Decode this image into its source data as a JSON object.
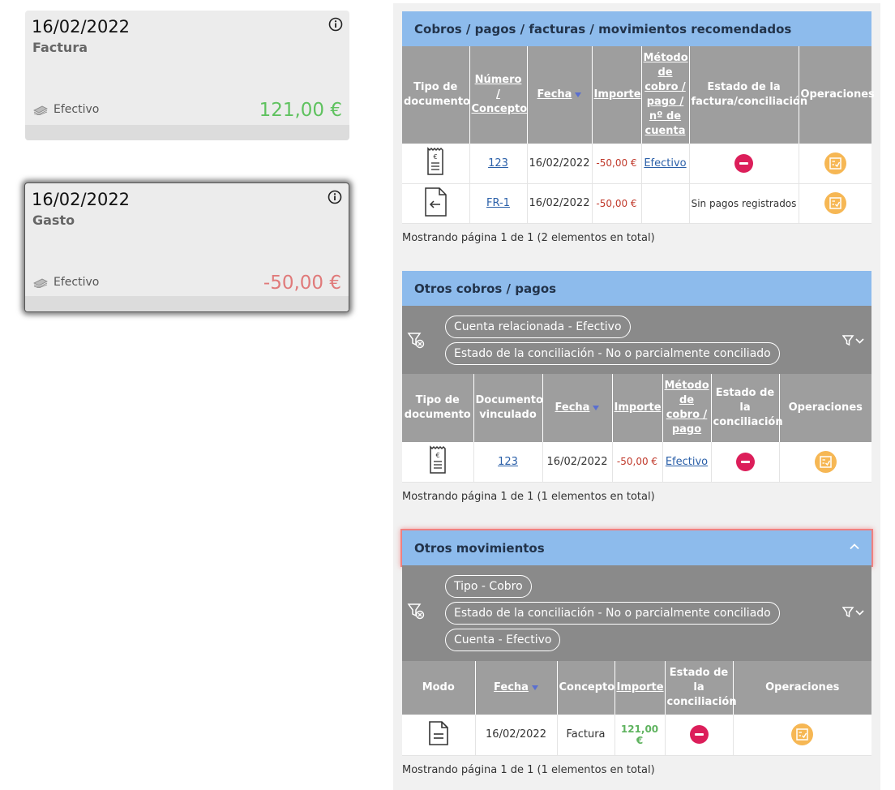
{
  "cards": [
    {
      "date": "16/02/2022",
      "type": "Factura",
      "method": "Efectivo",
      "amount": "121,00 €",
      "sign": "pos"
    },
    {
      "date": "16/02/2022",
      "type": "Gasto",
      "method": "Efectivo",
      "amount": "-50,00 €",
      "sign": "neg"
    }
  ],
  "recommended": {
    "title": "Cobros / pagos / facturas / movimientos recomendados",
    "headers": {
      "doc_type": "Tipo de documento",
      "number": "Número / Concepto",
      "date": "Fecha",
      "amount": "Importe",
      "method": "Método de cobro / pago / nº de cuenta",
      "status": "Estado de la factura/conciliación",
      "ops": "Operaciones"
    },
    "rows": [
      {
        "icon": "receipt-icon",
        "number": "123",
        "date": "16/02/2022",
        "amount": "-50,00 €",
        "method": "Efectivo",
        "status": ""
      },
      {
        "icon": "document-in-icon",
        "number": "FR-1",
        "date": "16/02/2022",
        "amount": "-50,00 €",
        "method": "",
        "status": "Sin pagos registrados"
      }
    ],
    "footer": "Mostrando página 1 de 1 (2 elementos en total)"
  },
  "other_payments": {
    "title": "Otros cobros / pagos",
    "filters": [
      "Cuenta relacionada - Efectivo",
      "Estado de la conciliación - No o parcialmente conciliado"
    ],
    "headers": {
      "doc_type": "Tipo de documento",
      "linked": "Documento vinculado",
      "date": "Fecha",
      "amount": "Importe",
      "method": "Método de cobro / pago",
      "status": "Estado de la conciliación",
      "ops": "Operaciones"
    },
    "rows": [
      {
        "icon": "receipt-icon",
        "linked": "123",
        "date": "16/02/2022",
        "amount": "-50,00 €",
        "method": "Efectivo"
      }
    ],
    "footer": "Mostrando página 1 de 1 (1 elementos en total)"
  },
  "other_movements": {
    "title": "Otros movimientos",
    "filters": [
      "Tipo - Cobro",
      "Estado de la conciliación - No o parcialmente conciliado",
      "Cuenta - Efectivo"
    ],
    "headers": {
      "mode": "Modo",
      "date": "Fecha",
      "concept": "Concepto",
      "amount": "Importe",
      "status": "Estado de la conciliación",
      "ops": "Operaciones"
    },
    "rows": [
      {
        "icon": "document-icon",
        "date": "16/02/2022",
        "concept": "Factura",
        "amount": "121,00 €"
      }
    ],
    "footer": "Mostrando página 1 de 1 (1 elementos en total)"
  }
}
